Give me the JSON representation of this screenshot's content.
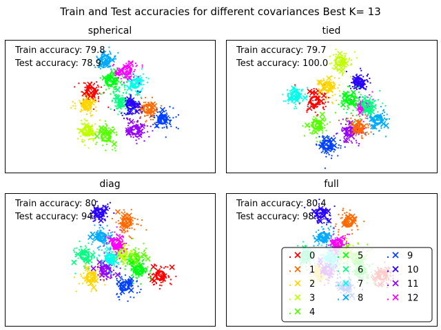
{
  "chart_data": {
    "type": "scatter",
    "title": "Train and Test accuracies for different covariances Best K= 13",
    "legend": {
      "placement": "lower-right of the 'full' panel",
      "entries": [
        "0",
        "1",
        "2",
        "3",
        "4",
        "5",
        "6",
        "7",
        "8",
        "9",
        "10",
        "11",
        "12"
      ]
    },
    "colors": [
      "#ff0000",
      "#ff6a00",
      "#ffd500",
      "#bfff00",
      "#55ff00",
      "#00ff15",
      "#00ff80",
      "#00ffea",
      "#00aaff",
      "#0040ff",
      "#2a00ff",
      "#9500ff",
      "#ff00ff"
    ],
    "panels": [
      {
        "name": "spherical",
        "train_label": "Train accuracy: ",
        "train_value": "79.8",
        "test_label": "Test accuracy: ",
        "test_value": "78.9",
        "means": [
          {
            "c": 7,
            "x": 0.62,
            "y": 0.33
          },
          {
            "c": 5,
            "x": 0.5,
            "y": 0.31
          },
          {
            "c": 0,
            "x": 0.41,
            "y": 0.39
          },
          {
            "c": 1,
            "x": 0.68,
            "y": 0.52
          },
          {
            "c": 2,
            "x": 0.39,
            "y": 0.49
          },
          {
            "c": 3,
            "x": 0.39,
            "y": 0.69
          },
          {
            "c": 4,
            "x": 0.48,
            "y": 0.73
          },
          {
            "c": 6,
            "x": 0.56,
            "y": 0.47
          },
          {
            "c": 8,
            "x": 0.48,
            "y": 0.15
          },
          {
            "c": 9,
            "x": 0.75,
            "y": 0.6
          },
          {
            "c": 10,
            "x": 0.6,
            "y": 0.49
          },
          {
            "c": 11,
            "x": 0.62,
            "y": 0.68
          },
          {
            "c": 12,
            "x": 0.58,
            "y": 0.23
          }
        ]
      },
      {
        "name": "tied",
        "train_label": "Train accuracy: ",
        "train_value": "79.7",
        "test_label": "Test accuracy: ",
        "test_value": "100.0",
        "means": [
          {
            "c": 3,
            "x": 0.54,
            "y": 0.16
          },
          {
            "c": 0,
            "x": 0.42,
            "y": 0.46
          },
          {
            "c": 4,
            "x": 0.43,
            "y": 0.64
          },
          {
            "c": 9,
            "x": 0.48,
            "y": 0.79
          },
          {
            "c": 11,
            "x": 0.59,
            "y": 0.69
          },
          {
            "c": 1,
            "x": 0.63,
            "y": 0.66
          },
          {
            "c": 8,
            "x": 0.72,
            "y": 0.6
          },
          {
            "c": 12,
            "x": 0.65,
            "y": 0.5
          },
          {
            "c": 10,
            "x": 0.63,
            "y": 0.32
          },
          {
            "c": 5,
            "x": 0.59,
            "y": 0.45
          },
          {
            "c": 6,
            "x": 0.67,
            "y": 0.49
          },
          {
            "c": 7,
            "x": 0.33,
            "y": 0.42
          },
          {
            "c": 2,
            "x": 0.48,
            "y": 0.35
          }
        ]
      },
      {
        "name": "diag",
        "train_label": "Train accuracy: ",
        "train_value": "80.",
        "test_label": "Test accuracy: ",
        "test_value": "94.",
        "means": [
          {
            "c": 10,
            "x": 0.45,
            "y": 0.15
          },
          {
            "c": 1,
            "x": 0.58,
            "y": 0.22
          },
          {
            "c": 6,
            "x": 0.38,
            "y": 0.47
          },
          {
            "c": 2,
            "x": 0.41,
            "y": 0.63
          },
          {
            "c": 9,
            "x": 0.57,
            "y": 0.7
          },
          {
            "c": 0,
            "x": 0.74,
            "y": 0.62
          },
          {
            "c": 4,
            "x": 0.62,
            "y": 0.49
          },
          {
            "c": 3,
            "x": 0.56,
            "y": 0.45
          },
          {
            "c": 11,
            "x": 0.48,
            "y": 0.58
          },
          {
            "c": 7,
            "x": 0.5,
            "y": 0.49
          },
          {
            "c": 5,
            "x": 0.64,
            "y": 0.58
          },
          {
            "c": 8,
            "x": 0.46,
            "y": 0.33
          },
          {
            "c": 12,
            "x": 0.53,
            "y": 0.38
          }
        ]
      },
      {
        "name": "full",
        "train_label": "Train accuracy: ",
        "train_value": "80.4",
        "test_label": "Test accuracy: ",
        "test_value": "98.",
        "means": [
          {
            "c": 10,
            "x": 0.45,
            "y": 0.15
          },
          {
            "c": 1,
            "x": 0.58,
            "y": 0.22
          },
          {
            "c": 6,
            "x": 0.38,
            "y": 0.47
          },
          {
            "c": 2,
            "x": 0.44,
            "y": 0.6
          },
          {
            "c": 9,
            "x": 0.57,
            "y": 0.7
          },
          {
            "c": 0,
            "x": 0.74,
            "y": 0.62
          },
          {
            "c": 4,
            "x": 0.62,
            "y": 0.49
          },
          {
            "c": 3,
            "x": 0.56,
            "y": 0.45
          },
          {
            "c": 11,
            "x": 0.48,
            "y": 0.58
          },
          {
            "c": 7,
            "x": 0.5,
            "y": 0.49
          },
          {
            "c": 5,
            "x": 0.64,
            "y": 0.58
          },
          {
            "c": 8,
            "x": 0.46,
            "y": 0.33
          },
          {
            "c": 12,
            "x": 0.53,
            "y": 0.38
          }
        ]
      }
    ]
  }
}
